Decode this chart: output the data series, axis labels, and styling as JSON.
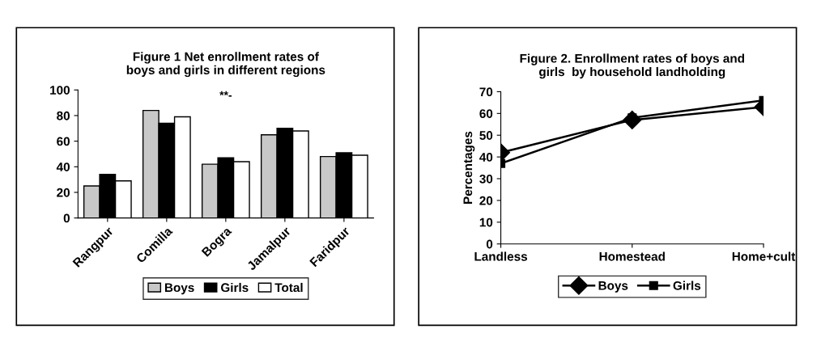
{
  "chart_data": [
    {
      "type": "bar",
      "title": "Figure 1 Net enrollment rates of\nboys and girls in different regions",
      "categories": [
        "Rangpur",
        "Comilla",
        "Bogra",
        "Jamalpur",
        "Faridpur"
      ],
      "series": [
        {
          "name": "Boys",
          "color": "#c8c8c8",
          "values": [
            25,
            84,
            42,
            65,
            48
          ]
        },
        {
          "name": "Girls",
          "color": "#000000",
          "values": [
            34,
            74,
            47,
            70,
            51
          ]
        },
        {
          "name": "Total",
          "color": "#ffffff",
          "values": [
            29,
            79,
            44,
            68,
            49
          ]
        }
      ],
      "ylim": [
        0,
        100
      ],
      "yticks": [
        0,
        20,
        40,
        60,
        80,
        100
      ],
      "grid": false,
      "legend": "bottom",
      "annotations": [
        "**-"
      ]
    },
    {
      "type": "line",
      "title": "Figure 2. Enrollment rates of boys and\ngirls  by household landholding",
      "ylabel": "Percentages",
      "categories": [
        "Landless",
        "Homestead",
        "Home+cult"
      ],
      "series": [
        {
          "name": "Boys",
          "color": "#000000",
          "marker": "diamond",
          "values": [
            42,
            57,
            63
          ]
        },
        {
          "name": "Girls",
          "color": "#000000",
          "marker": "square",
          "values": [
            37,
            58,
            66
          ]
        }
      ],
      "ylim": [
        0,
        70
      ],
      "yticks": [
        0,
        10,
        20,
        30,
        40,
        50,
        60,
        70
      ],
      "grid": false,
      "legend": "bottom",
      "line_style": "solid"
    }
  ]
}
